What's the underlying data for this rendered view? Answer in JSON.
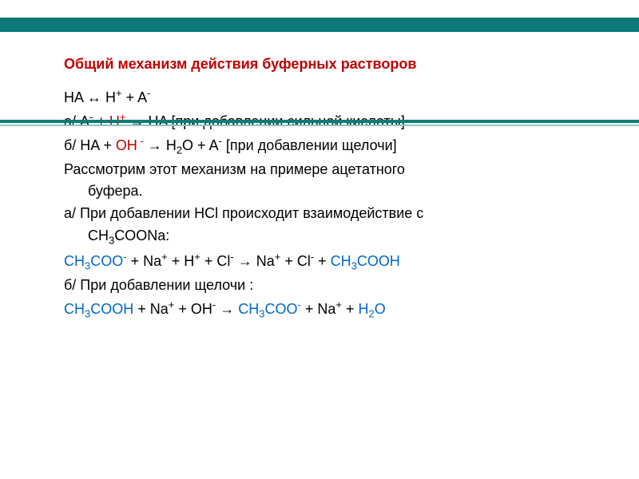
{
  "colors": {
    "title": "#c00000",
    "red": "#c00000",
    "blue": "#0066cc",
    "black": "#000000",
    "bar_dark": "#0a7a7a",
    "bar_light": "#8bc5c5",
    "background": "#ffffff"
  },
  "typography": {
    "title_fontsize": 18,
    "body_fontsize": 18,
    "title_weight": "bold",
    "font_family": "Arial"
  },
  "title": "Общий механизм действия буферных растворов",
  "eq1": {
    "lhs": "HA ",
    "arr": "↔",
    "h": " H",
    "h_sup": "+",
    "plus": " + A",
    "a_sup": "-"
  },
  "line_a": {
    "prefix": "а/   A",
    "a_sup": "-",
    "plus1": " + ",
    "h": "H",
    "h_sup": "+",
    "arr": " → ",
    "rhs": "HA ",
    "note": "[при добавлении сильной кислоты]"
  },
  "line_b": {
    "prefix": "б/   HA + ",
    "oh": "OH",
    "oh_sup": " -",
    "arr": " → ",
    "h2o": "H",
    "two": "2",
    "o": "O + A",
    "a_sup": "-",
    "note": " [при добавлении щелочи]"
  },
  "line_c": "Рассмотрим этот механизм на примере ацетатного",
  "line_c2": "буфера.",
  "line_d": "а/ При добавлении HCl происходит взаимодействие с",
  "line_d2": "CH",
  "line_d2_3": "3",
  "line_d2_rest": "COONa:",
  "eq2": {
    "ch": "CH",
    "three1": "3",
    "coo": "COO",
    "coo_sup": "-",
    "plus1": " + Na",
    "na_sup1": "+",
    "plus2": " + H",
    "h_sup": "+",
    "plus3": " + Cl",
    "cl_sup1": "-",
    "arr": " → ",
    "na2": "Na",
    "na_sup2": "+",
    "plus4": " + Cl",
    "cl_sup2": "-",
    "plus5": " + ",
    "ch2": "CH",
    "three2": "3",
    "cooh": "COOH"
  },
  "line_e": "б/ При добавлении щелочи :",
  "eq3": {
    "ch": "CH",
    "three1": "3",
    "cooh": "COOH",
    "plus1": " + Na",
    "na_sup1": "+",
    "plus2": " + OH",
    "oh_sup": "-",
    "arr": " → ",
    "ch2": "CH",
    "three2": "3",
    "coo": "COO",
    "coo_sup": "-",
    "plus3": " + Na",
    "na_sup2": "+",
    "plus4": " + ",
    "h2o_h": "H",
    "two": "2",
    "o": "O"
  }
}
